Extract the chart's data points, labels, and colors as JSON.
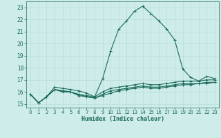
{
  "xlabel": "Humidex (Indice chaleur)",
  "background_color": "#ceecea",
  "line_color": "#1a6b5a",
  "grid_color": "#b8ddd9",
  "xlim": [
    -0.5,
    23.5
  ],
  "ylim": [
    14.7,
    23.5
  ],
  "yticks": [
    15,
    16,
    17,
    18,
    19,
    20,
    21,
    22,
    23
  ],
  "xticks": [
    0,
    1,
    2,
    3,
    4,
    5,
    6,
    7,
    8,
    9,
    10,
    11,
    12,
    13,
    14,
    15,
    16,
    17,
    18,
    19,
    20,
    21,
    22,
    23
  ],
  "series": [
    [
      15.8,
      15.1,
      15.6,
      16.4,
      16.3,
      16.2,
      16.1,
      15.9,
      15.6,
      17.1,
      19.4,
      21.2,
      21.9,
      22.7,
      23.1,
      22.5,
      21.9,
      21.2,
      20.3,
      17.9,
      17.2,
      16.9,
      17.3,
      17.1
    ],
    [
      15.8,
      15.1,
      15.6,
      16.2,
      16.1,
      16.0,
      15.8,
      15.7,
      15.6,
      16.0,
      16.3,
      16.4,
      16.5,
      16.6,
      16.7,
      16.6,
      16.6,
      16.7,
      16.8,
      16.9,
      16.9,
      16.9,
      17.0,
      17.0
    ],
    [
      15.8,
      15.1,
      15.6,
      16.2,
      16.1,
      16.0,
      15.8,
      15.6,
      15.5,
      15.8,
      16.1,
      16.2,
      16.3,
      16.4,
      16.5,
      16.4,
      16.4,
      16.5,
      16.6,
      16.7,
      16.7,
      16.7,
      16.8,
      16.8
    ],
    [
      15.8,
      15.1,
      15.6,
      16.2,
      16.0,
      16.0,
      15.7,
      15.6,
      15.5,
      15.7,
      15.9,
      16.1,
      16.2,
      16.3,
      16.4,
      16.3,
      16.3,
      16.4,
      16.5,
      16.6,
      16.6,
      16.7,
      16.7,
      16.8
    ]
  ]
}
